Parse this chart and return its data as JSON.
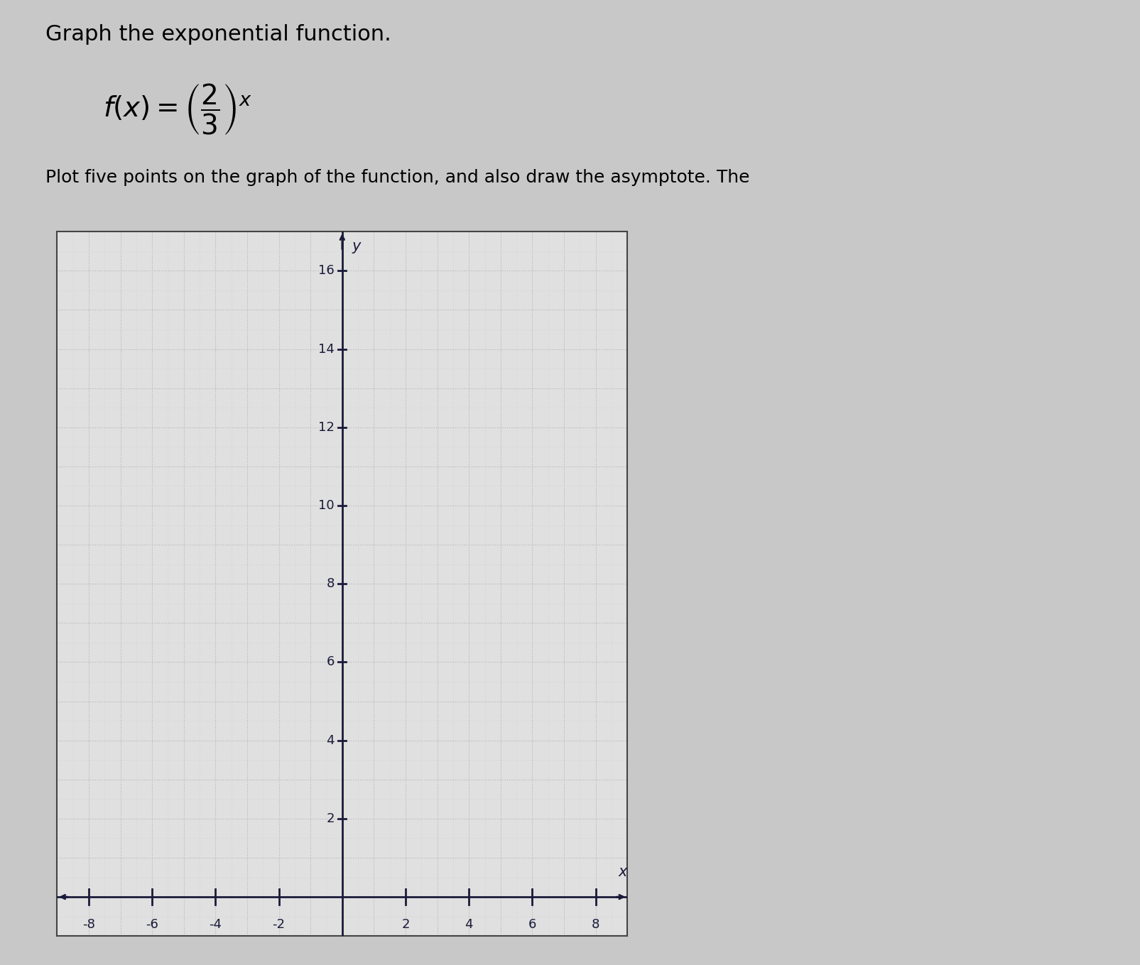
{
  "title": "Graph the exponential function.",
  "instruction": "Plot five points on the graph of the function, and also draw the asymptote. The",
  "xlim": [
    -9,
    9
  ],
  "ylim": [
    -1,
    17
  ],
  "xticks": [
    -8,
    -6,
    -4,
    -2,
    2,
    4,
    6,
    8
  ],
  "yticks": [
    2,
    4,
    6,
    8,
    10,
    12,
    14,
    16
  ],
  "grid_minor_color": "#c8c8c8",
  "grid_major_color": "#b8b8b8",
  "axis_color": "#1a1a3a",
  "background_color": "#e0e0e0",
  "outer_background": "#c8c8c8",
  "title_fontsize": 22,
  "instruction_fontsize": 18,
  "label_fontsize": 15,
  "tick_fontsize": 13,
  "x_label": "x",
  "y_label": "y"
}
